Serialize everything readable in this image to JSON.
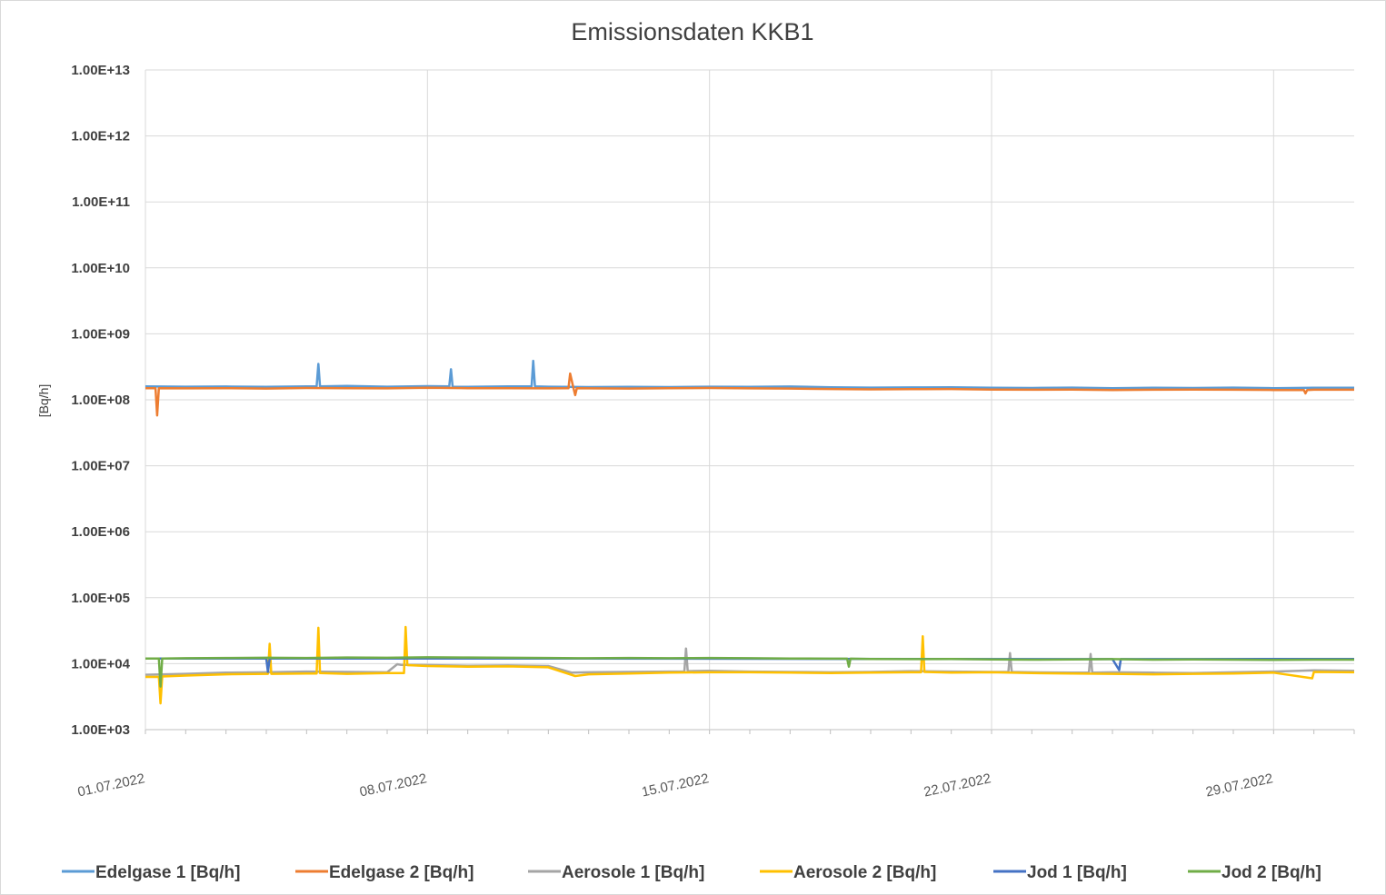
{
  "chart_data": {
    "type": "line",
    "title": "Emissionsdaten KKB1",
    "ylabel": "[Bq/h]",
    "xlabel": "",
    "yscale": "log",
    "ylim": [
      1000,
      10000000000000
    ],
    "y_ticks": [
      "1.00E+03",
      "1.00E+04",
      "1.00E+05",
      "1.00E+06",
      "1.00E+07",
      "1.00E+08",
      "1.00E+09",
      "1.00E+10",
      "1.00E+11",
      "1.00E+12",
      "1.00E+13"
    ],
    "xlim": [
      "2022-07-01",
      "2022-07-31"
    ],
    "x_ticks": [
      "01.07.2022",
      "08.07.2022",
      "15.07.2022",
      "22.07.2022",
      "29.07.2022"
    ],
    "grid": true,
    "legend": "bottom",
    "series": [
      {
        "name": "Edelgase 1 [Bq/h]",
        "color": "#5b9bd5",
        "x": [
          "2022-07-01",
          "2022-07-02",
          "2022-07-03",
          "2022-07-04",
          "2022-07-05",
          "2022-07-05 06:00",
          "2022-07-05 07:00",
          "2022-07-05 08:00",
          "2022-07-06",
          "2022-07-07",
          "2022-07-08",
          "2022-07-08 13:00",
          "2022-07-08 14:00",
          "2022-07-08 15:00",
          "2022-07-09",
          "2022-07-10",
          "2022-07-10 14:00",
          "2022-07-10 15:00",
          "2022-07-10 16:00",
          "2022-07-11",
          "2022-07-12",
          "2022-07-13",
          "2022-07-14",
          "2022-07-15",
          "2022-07-16",
          "2022-07-17",
          "2022-07-18",
          "2022-07-19",
          "2022-07-20",
          "2022-07-21",
          "2022-07-22",
          "2022-07-23",
          "2022-07-24",
          "2022-07-25",
          "2022-07-26",
          "2022-07-27",
          "2022-07-28",
          "2022-07-29",
          "2022-07-30",
          "2022-07-31"
        ],
        "y": [
          160000000,
          158000000,
          159000000,
          157000000,
          160000000,
          160000000,
          350000000,
          160000000,
          162000000,
          158000000,
          161000000,
          160000000,
          290000000,
          158000000,
          157000000,
          160000000,
          160000000,
          390000000,
          160000000,
          158000000,
          156000000,
          157000000,
          156000000,
          158000000,
          157000000,
          159000000,
          155000000,
          153000000,
          154000000,
          155000000,
          152000000,
          151000000,
          153000000,
          150000000,
          152000000,
          151000000,
          153000000,
          150000000,
          152000000,
          152000000
        ]
      },
      {
        "name": "Edelgase 2 [Bq/h]",
        "color": "#ed7d31",
        "x": [
          "2022-07-01",
          "2022-07-01 06:00",
          "2022-07-01 07:00",
          "2022-07-01 08:00",
          "2022-07-02",
          "2022-07-03",
          "2022-07-04",
          "2022-07-05",
          "2022-07-06",
          "2022-07-07",
          "2022-07-08",
          "2022-07-09",
          "2022-07-10",
          "2022-07-11",
          "2022-07-11 12:00",
          "2022-07-11 13:00",
          "2022-07-11 15:00",
          "2022-07-11 16:00",
          "2022-07-11 17:00",
          "2022-07-12",
          "2022-07-13",
          "2022-07-14",
          "2022-07-15",
          "2022-07-16",
          "2022-07-17",
          "2022-07-18",
          "2022-07-19",
          "2022-07-20",
          "2022-07-21",
          "2022-07-22",
          "2022-07-23",
          "2022-07-24",
          "2022-07-25",
          "2022-07-26",
          "2022-07-27",
          "2022-07-28",
          "2022-07-29",
          "2022-07-29 18:00",
          "2022-07-29 19:00",
          "2022-07-29 20:00",
          "2022-07-30",
          "2022-07-31"
        ],
        "y": [
          150000000,
          150000000,
          58000000,
          150000000,
          149000000,
          150000000,
          148000000,
          151000000,
          150000000,
          149000000,
          152000000,
          150000000,
          150000000,
          149000000,
          150000000,
          250000000,
          150000000,
          118000000,
          150000000,
          149000000,
          148000000,
          150000000,
          151000000,
          149000000,
          148000000,
          146000000,
          144000000,
          145000000,
          146000000,
          143000000,
          142000000,
          143000000,
          141000000,
          142000000,
          143000000,
          142000000,
          141000000,
          141000000,
          125000000,
          141000000,
          142000000,
          142000000
        ]
      },
      {
        "name": "Aerosole 1 [Bq/h]",
        "color": "#a5a5a5",
        "x": [
          "2022-07-01",
          "2022-07-02",
          "2022-07-03",
          "2022-07-04",
          "2022-07-05",
          "2022-07-06",
          "2022-07-07",
          "2022-07-07 06:00",
          "2022-07-07 08:00",
          "2022-07-08",
          "2022-07-09",
          "2022-07-10",
          "2022-07-11",
          "2022-07-11 14:00",
          "2022-07-12",
          "2022-07-13",
          "2022-07-14",
          "2022-07-14 09:00",
          "2022-07-14 10:00",
          "2022-07-14 11:00",
          "2022-07-15",
          "2022-07-16",
          "2022-07-17",
          "2022-07-18",
          "2022-07-19",
          "2022-07-20",
          "2022-07-21",
          "2022-07-22",
          "2022-07-22 10:00",
          "2022-07-22 11:00",
          "2022-07-22 12:00",
          "2022-07-23",
          "2022-07-24",
          "2022-07-24 10:00",
          "2022-07-24 11:00",
          "2022-07-24 12:00",
          "2022-07-25",
          "2022-07-26",
          "2022-07-27",
          "2022-07-28",
          "2022-07-29",
          "2022-07-30",
          "2022-07-31"
        ],
        "y": [
          6800,
          7000,
          7300,
          7400,
          7600,
          7500,
          7400,
          9800,
          9600,
          9500,
          9300,
          9400,
          9200,
          7300,
          7400,
          7500,
          7600,
          7600,
          17000,
          7700,
          7800,
          7600,
          7500,
          7400,
          7500,
          7700,
          7600,
          7500,
          7500,
          14500,
          7500,
          7400,
          7300,
          7300,
          14000,
          7300,
          7400,
          7300,
          7200,
          7400,
          7600,
          7900,
          7800
        ]
      },
      {
        "name": "Aerosole 2 [Bq/h]",
        "color": "#ffc000",
        "x": [
          "2022-07-01",
          "2022-07-01 08:00",
          "2022-07-01 09:00",
          "2022-07-01 10:00",
          "2022-07-02",
          "2022-07-03",
          "2022-07-04",
          "2022-07-04 01:00",
          "2022-07-04 02:00",
          "2022-07-04 03:00",
          "2022-07-05",
          "2022-07-05 06:00",
          "2022-07-05 07:00",
          "2022-07-05 08:00",
          "2022-07-06",
          "2022-07-07",
          "2022-07-07 10:00",
          "2022-07-07 11:00",
          "2022-07-07 12:00",
          "2022-07-08",
          "2022-07-09",
          "2022-07-10",
          "2022-07-11",
          "2022-07-11 16:00",
          "2022-07-12",
          "2022-07-13",
          "2022-07-14",
          "2022-07-15",
          "2022-07-16",
          "2022-07-17",
          "2022-07-18",
          "2022-07-19",
          "2022-07-20",
          "2022-07-20 06:00",
          "2022-07-20 07:00",
          "2022-07-20 08:00",
          "2022-07-21",
          "2022-07-22",
          "2022-07-23",
          "2022-07-24",
          "2022-07-25",
          "2022-07-26",
          "2022-07-27",
          "2022-07-28",
          "2022-07-29",
          "2022-07-29 23:00",
          "2022-07-30",
          "2022-07-31"
        ],
        "y": [
          6300,
          6300,
          2500,
          6400,
          6600,
          6900,
          7000,
          7000,
          20000,
          7000,
          7100,
          7100,
          35000,
          7200,
          7000,
          7200,
          7200,
          36000,
          9500,
          9200,
          9000,
          9100,
          8800,
          6500,
          6900,
          7100,
          7300,
          7400,
          7400,
          7300,
          7200,
          7300,
          7400,
          7400,
          26000,
          7500,
          7300,
          7400,
          7200,
          7100,
          7000,
          6900,
          7000,
          7100,
          7300,
          6000,
          7500,
          7400
        ]
      },
      {
        "name": "Jod 1 [Bq/h]",
        "color": "#4472c4",
        "x": [
          "2022-07-01",
          "2022-07-04",
          "2022-07-04 01:00",
          "2022-07-04 02:00",
          "2022-07-10",
          "2022-07-20",
          "2022-07-25",
          "2022-07-25 04:00",
          "2022-07-25 05:00",
          "2022-07-31"
        ],
        "y": [
          12000,
          12000,
          7500,
          12000,
          12000,
          11800,
          11700,
          8000,
          11700,
          11800
        ]
      },
      {
        "name": "Jod 2 [Bq/h]",
        "color": "#70ad47",
        "x": [
          "2022-07-01",
          "2022-07-01 08:00",
          "2022-07-01 09:00",
          "2022-07-01 10:00",
          "2022-07-02",
          "2022-07-03",
          "2022-07-04",
          "2022-07-05",
          "2022-07-06",
          "2022-07-07",
          "2022-07-08",
          "2022-07-09",
          "2022-07-10",
          "2022-07-11",
          "2022-07-12",
          "2022-07-13",
          "2022-07-14",
          "2022-07-15",
          "2022-07-16",
          "2022-07-17",
          "2022-07-18",
          "2022-07-18 10:00",
          "2022-07-18 11:00",
          "2022-07-18 12:00",
          "2022-07-19",
          "2022-07-20",
          "2022-07-21",
          "2022-07-22",
          "2022-07-23",
          "2022-07-24",
          "2022-07-25",
          "2022-07-26",
          "2022-07-27",
          "2022-07-28",
          "2022-07-29",
          "2022-07-30",
          "2022-07-31"
        ],
        "y": [
          12000,
          12000,
          4500,
          12000,
          12100,
          12200,
          12300,
          12200,
          12400,
          12300,
          12500,
          12400,
          12300,
          12200,
          12100,
          12200,
          12100,
          12200,
          12100,
          12000,
          11900,
          11900,
          9000,
          11900,
          11800,
          11700,
          11800,
          11600,
          11500,
          11600,
          11700,
          11500,
          11600,
          11500,
          11400,
          11500,
          11500
        ]
      }
    ]
  }
}
